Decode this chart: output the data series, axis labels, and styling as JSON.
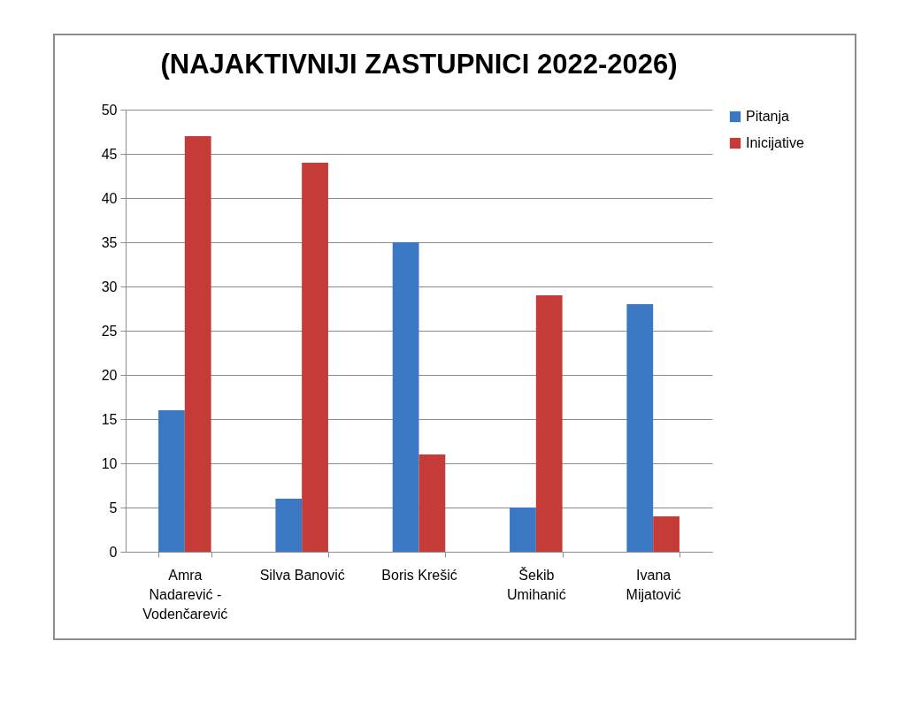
{
  "chart_data": {
    "type": "bar",
    "title": "(NAJAKTIVNIJI ZASTUPNICI 2022-2026)",
    "categories": [
      "Amra Nadarević - Vodenčarević",
      "Silva Banović",
      "Boris Krešić",
      "Šekib Umihanić",
      "Ivana Mijatović"
    ],
    "series": [
      {
        "name": "Pitanja",
        "color": "#3b78c4",
        "values": [
          16,
          6,
          35,
          5,
          28
        ]
      },
      {
        "name": "Inicijative",
        "color": "#c43b38",
        "values": [
          47,
          44,
          11,
          29,
          4
        ]
      }
    ],
    "ylim": [
      0,
      50
    ],
    "yticks": [
      0,
      5,
      10,
      15,
      20,
      25,
      30,
      35,
      40,
      45,
      50
    ],
    "grid": "y",
    "legend": "right"
  }
}
